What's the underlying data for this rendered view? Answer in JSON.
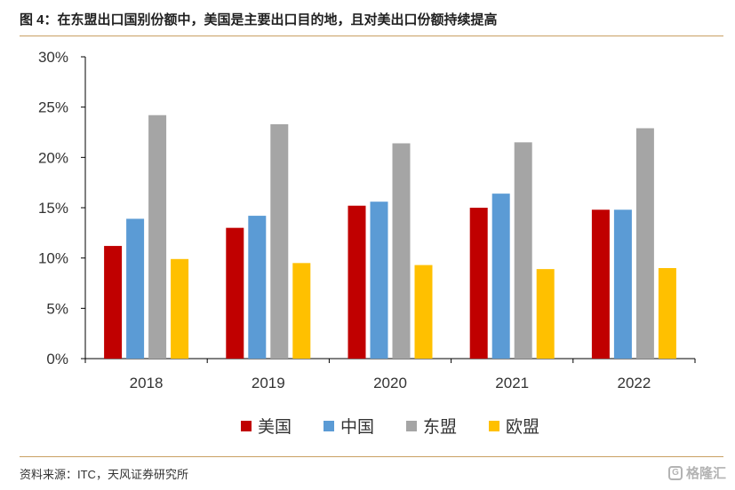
{
  "figure": {
    "title": "图 4：在东盟出口国别份额中，美国是主要出口目的地，且对美出口份额持续提高",
    "source": "资料来源：ITC，天风证券研究所",
    "watermark": "格隆汇"
  },
  "chart_data": {
    "type": "bar",
    "title": "",
    "xlabel": "",
    "ylabel": "",
    "categories": [
      "2018",
      "2019",
      "2020",
      "2021",
      "2022"
    ],
    "ylim": [
      0,
      0.3
    ],
    "yticks": [
      0,
      0.05,
      0.1,
      0.15,
      0.2,
      0.25,
      0.3
    ],
    "ytick_labels": [
      "0%",
      "5%",
      "10%",
      "15%",
      "20%",
      "25%",
      "30%"
    ],
    "grid": false,
    "legend_position": "bottom",
    "series": [
      {
        "name": "美国",
        "color": "#c00000",
        "values": [
          0.112,
          0.13,
          0.152,
          0.15,
          0.148
        ]
      },
      {
        "name": "中国",
        "color": "#5b9bd5",
        "values": [
          0.139,
          0.142,
          0.156,
          0.164,
          0.148
        ]
      },
      {
        "name": "东盟",
        "color": "#a5a5a5",
        "values": [
          0.242,
          0.233,
          0.214,
          0.215,
          0.229
        ]
      },
      {
        "name": "欧盟",
        "color": "#ffc000",
        "values": [
          0.099,
          0.095,
          0.093,
          0.089,
          0.09
        ]
      }
    ]
  }
}
